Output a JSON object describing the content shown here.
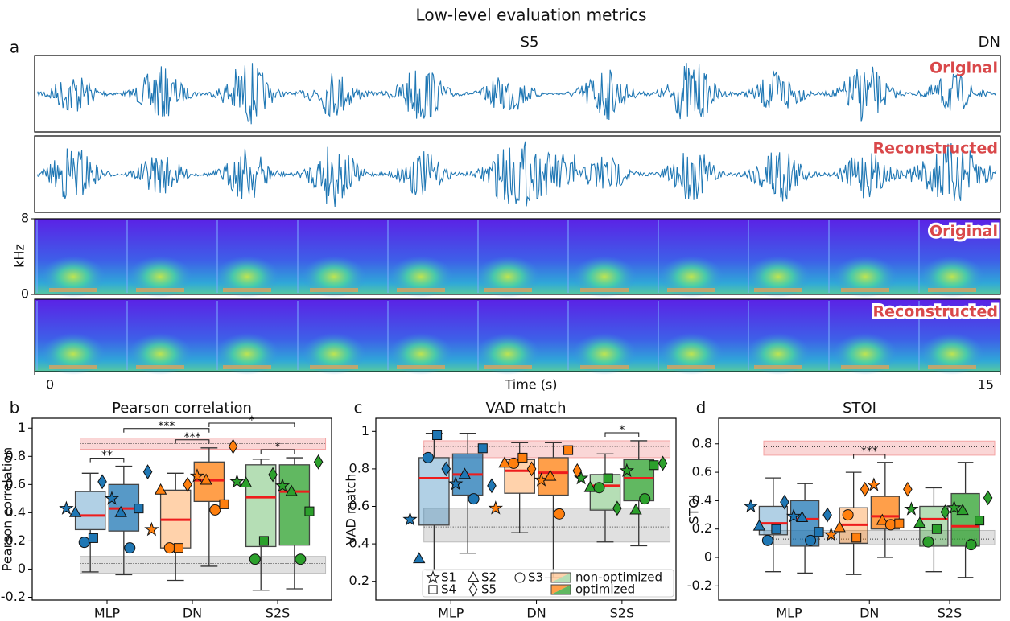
{
  "title": "Low-level evaluation metrics",
  "chart_data": [
    {
      "type": "audio",
      "label": "a",
      "subject": "S5",
      "model": "DN",
      "tracks": [
        "Original",
        "Reconstructed"
      ],
      "ylabel": "kHz",
      "ylim": [
        0,
        8
      ],
      "yticks": [
        0,
        8
      ],
      "xlabel": "Time (s)",
      "xlim": [
        0,
        15
      ],
      "xticks": [
        0,
        15
      ]
    },
    {
      "type": "box",
      "label": "b",
      "title": "Pearson correlation",
      "ylabel": "Pearson correlation",
      "categories": [
        "MLP",
        "DN",
        "S2S"
      ],
      "colors": [
        "#1f77b4",
        "#ff7f0e",
        "#2ca02c"
      ],
      "markers": [
        "star",
        "triangle",
        "circle",
        "square",
        "diamond"
      ],
      "ylim": [
        -0.22,
        1.07
      ],
      "yticks": [
        -0.2,
        0,
        0.2,
        0.4,
        0.6,
        0.8,
        1
      ],
      "chance": {
        "low": -0.03,
        "high": 0.09,
        "mean": 0.04
      },
      "ceiling": {
        "low": 0.85,
        "high": 0.93,
        "mean": 0.89
      },
      "series": [
        {
          "alpha": 0.35,
          "boxes": [
            {
              "low": -0.02,
              "q1": 0.28,
              "median": 0.38,
              "q3": 0.55,
              "high": 0.68
            },
            {
              "low": -0.08,
              "q1": 0.15,
              "median": 0.35,
              "q3": 0.56,
              "high": 0.68
            },
            {
              "low": -0.15,
              "q1": 0.16,
              "median": 0.51,
              "q3": 0.74,
              "high": 0.78
            }
          ],
          "subjects": [
            [
              0.43,
              0.4,
              0.19,
              0.22,
              0.62
            ],
            [
              0.28,
              0.56,
              0.15,
              0.15,
              0.6
            ],
            [
              0.62,
              0.61,
              0.07,
              0.2,
              0.67
            ]
          ]
        },
        {
          "alpha": 0.75,
          "boxes": [
            {
              "low": -0.04,
              "q1": 0.27,
              "median": 0.43,
              "q3": 0.6,
              "high": 0.73
            },
            {
              "low": 0.02,
              "q1": 0.48,
              "median": 0.63,
              "q3": 0.76,
              "high": 0.86
            },
            {
              "low": -0.14,
              "q1": 0.17,
              "median": 0.55,
              "q3": 0.74,
              "high": 0.79
            }
          ],
          "subjects": [
            [
              0.5,
              0.4,
              0.15,
              0.43,
              0.69
            ],
            [
              0.66,
              0.63,
              0.42,
              0.46,
              0.87
            ],
            [
              0.59,
              0.55,
              0.07,
              0.41,
              0.76
            ]
          ]
        }
      ],
      "significance": [
        {
          "pair": [
            0,
            1
          ],
          "label": "**"
        },
        {
          "pair": [
            2,
            3
          ],
          "label": "***"
        },
        {
          "pair": [
            4,
            5
          ],
          "label": "*"
        },
        {
          "pair": [
            1,
            3
          ],
          "label": "***"
        },
        {
          "pair": [
            3,
            5
          ],
          "label": "*"
        }
      ]
    },
    {
      "type": "box",
      "label": "c",
      "title": "VAD match",
      "ylabel": "VAD match",
      "categories": [
        "MLP",
        "DN",
        "S2S"
      ],
      "colors": [
        "#1f77b4",
        "#ff7f0e",
        "#2ca02c"
      ],
      "markers": [
        "star",
        "triangle",
        "circle",
        "square",
        "diamond"
      ],
      "ylim": [
        0.1,
        1.07
      ],
      "yticks": [
        0.2,
        0.4,
        0.6,
        0.8,
        1
      ],
      "chance": {
        "low": 0.41,
        "high": 0.59,
        "mean": 0.49
      },
      "ceiling": {
        "low": 0.86,
        "high": 0.95,
        "mean": 0.92
      },
      "legend_subjects": [
        "S1",
        "S2",
        "S3",
        "S4",
        "S5"
      ],
      "series": [
        {
          "name": "non-optimized",
          "alpha": 0.35,
          "boxes": [
            {
              "low": 0.26,
              "q1": 0.5,
              "median": 0.75,
              "q3": 0.86,
              "high": 0.99
            },
            {
              "low": 0.46,
              "q1": 0.67,
              "median": 0.79,
              "q3": 0.85,
              "high": 0.94
            },
            {
              "low": 0.41,
              "q1": 0.58,
              "median": 0.71,
              "q3": 0.77,
              "high": 0.88
            }
          ],
          "subjects": [
            [
              0.53,
              0.32,
              0.86,
              0.98,
              0.8
            ],
            [
              0.59,
              0.83,
              0.83,
              0.86,
              0.8
            ],
            [
              0.75,
              0.7,
              0.7,
              0.75,
              0.59
            ]
          ]
        },
        {
          "name": "optimized",
          "alpha": 0.75,
          "boxes": [
            {
              "low": 0.35,
              "q1": 0.66,
              "median": 0.77,
              "q3": 0.88,
              "high": 0.99
            },
            {
              "low": 0.22,
              "q1": 0.66,
              "median": 0.78,
              "q3": 0.86,
              "high": 0.94
            },
            {
              "low": 0.39,
              "q1": 0.63,
              "median": 0.75,
              "q3": 0.85,
              "high": 0.95
            }
          ],
          "subjects": [
            [
              0.72,
              0.77,
              0.64,
              0.91,
              0.71
            ],
            [
              0.74,
              0.76,
              0.56,
              0.9,
              0.79
            ],
            [
              0.79,
              0.58,
              0.64,
              0.82,
              0.83
            ]
          ]
        }
      ],
      "significance": [
        {
          "pair": [
            4,
            5
          ],
          "label": "*"
        }
      ]
    },
    {
      "type": "box",
      "label": "d",
      "title": "STOI",
      "ylabel": "STOI",
      "categories": [
        "MLP",
        "DN",
        "S2S"
      ],
      "colors": [
        "#1f77b4",
        "#ff7f0e",
        "#2ca02c"
      ],
      "markers": [
        "star",
        "triangle",
        "circle",
        "square",
        "diamond"
      ],
      "ylim": [
        -0.3,
        0.98
      ],
      "yticks": [
        -0.2,
        0,
        0.2,
        0.4,
        0.6,
        0.8
      ],
      "chance": {
        "low": 0.09,
        "high": 0.19,
        "mean": 0.13
      },
      "ceiling": {
        "low": 0.72,
        "high": 0.82,
        "mean": 0.78
      },
      "series": [
        {
          "alpha": 0.35,
          "boxes": [
            {
              "low": -0.1,
              "q1": 0.16,
              "median": 0.24,
              "q3": 0.36,
              "high": 0.56
            },
            {
              "low": -0.12,
              "q1": 0.1,
              "median": 0.23,
              "q3": 0.35,
              "high": 0.6
            },
            {
              "low": -0.1,
              "q1": 0.08,
              "median": 0.27,
              "q3": 0.36,
              "high": 0.49
            }
          ],
          "subjects": [
            [
              0.36,
              0.22,
              0.12,
              0.2,
              0.39
            ],
            [
              0.16,
              0.21,
              0.3,
              0.14,
              0.48
            ],
            [
              0.34,
              0.24,
              0.11,
              0.2,
              0.32
            ]
          ]
        },
        {
          "alpha": 0.75,
          "boxes": [
            {
              "low": -0.11,
              "q1": 0.08,
              "median": 0.27,
              "q3": 0.4,
              "high": 0.52
            },
            {
              "low": 0.0,
              "q1": 0.2,
              "median": 0.29,
              "q3": 0.43,
              "high": 0.67
            },
            {
              "low": -0.14,
              "q1": 0.08,
              "median": 0.22,
              "q3": 0.45,
              "high": 0.67
            }
          ],
          "subjects": [
            [
              0.29,
              0.28,
              0.12,
              0.18,
              0.3
            ],
            [
              0.51,
              0.26,
              0.23,
              0.24,
              0.48
            ],
            [
              0.35,
              0.33,
              0.09,
              0.26,
              0.42
            ]
          ]
        }
      ],
      "significance": [
        {
          "pair": [
            2,
            3
          ],
          "label": "***"
        }
      ]
    }
  ]
}
